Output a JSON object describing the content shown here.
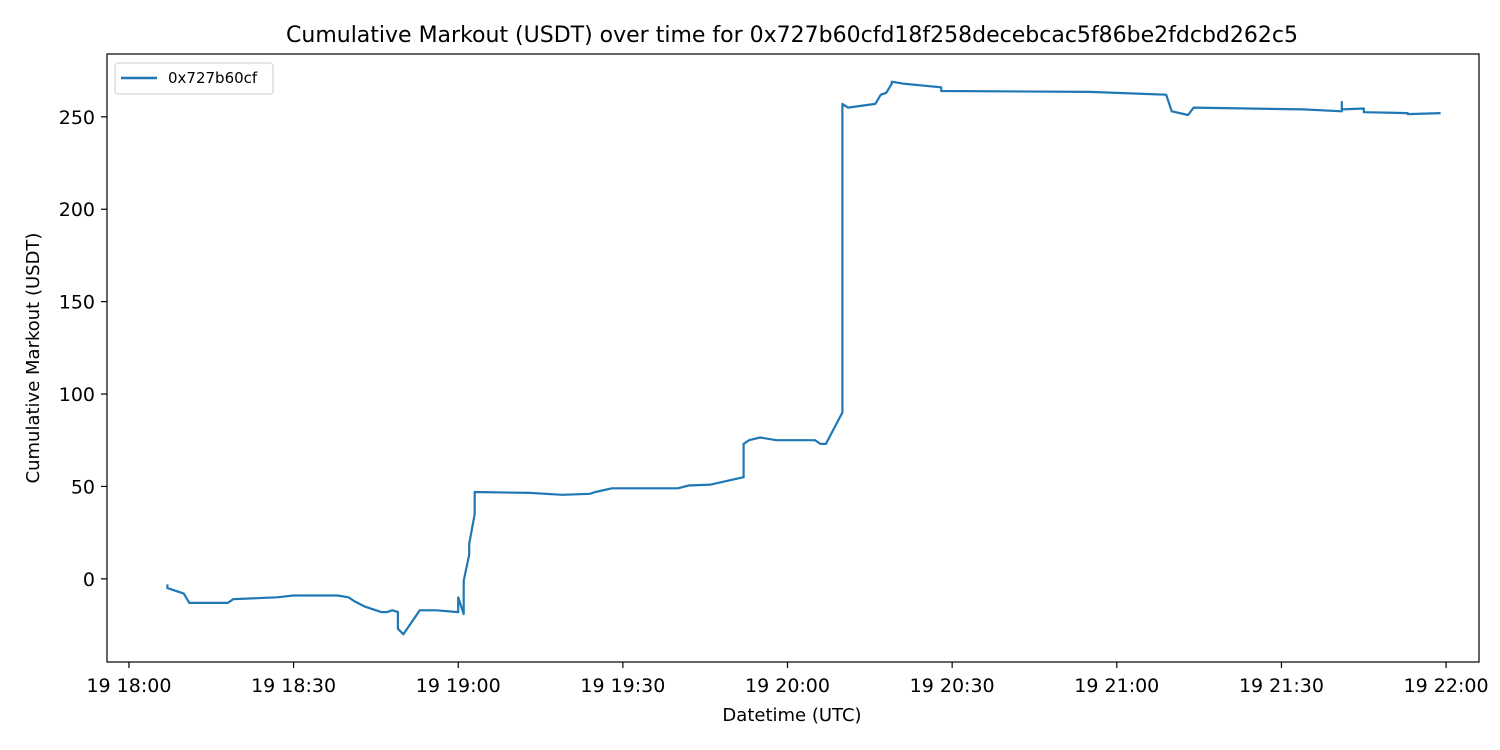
{
  "chart_data": {
    "type": "line",
    "title": "Cumulative Markout (USDT) over time for 0x727b60cfd18f258decebcac5f86be2fdcbd262c5",
    "xlabel": "Datetime (UTC)",
    "ylabel": "Cumulative Markout (USDT)",
    "x_ticks": [
      "19 18:00",
      "19 18:30",
      "19 19:00",
      "19 19:30",
      "19 20:00",
      "19 20:30",
      "19 21:00",
      "19 21:30",
      "19 22:00"
    ],
    "y_ticks": [
      0,
      50,
      100,
      150,
      200,
      250
    ],
    "xlim": [
      "19 17:56",
      "19 22:06"
    ],
    "ylim": [
      -45,
      284
    ],
    "grid": false,
    "legend": {
      "position": "top-left"
    },
    "series": [
      {
        "name": "0x727b60cf",
        "color": "#1f77b4",
        "x": [
          "19 18:07",
          "19 18:07",
          "19 18:10",
          "19 18:11",
          "19 18:18",
          "19 18:19",
          "19 18:27",
          "19 18:30",
          "19 18:38",
          "19 18:40",
          "19 18:41",
          "19 18:43",
          "19 18:44",
          "19 18:46",
          "19 18:47",
          "19 18:48",
          "19 18:49",
          "19 18:49",
          "19 18:50",
          "19 18:53",
          "19 18:56",
          "19 19:00",
          "19 19:00",
          "19 19:01",
          "19 19:01",
          "19 19:02",
          "19 19:02",
          "19 19:03",
          "19 19:03",
          "19 19:03",
          "19 19:13",
          "19 19:19",
          "19 19:24",
          "19 19:25",
          "19 19:28",
          "19 19:40",
          "19 19:42",
          "19 19:46",
          "19 19:52",
          "19 19:52",
          "19 19:53",
          "19 19:55",
          "19 19:58",
          "19 20:05",
          "19 20:06",
          "19 20:07",
          "19 20:10",
          "19 20:10",
          "19 20:10",
          "19 20:10",
          "19 20:11",
          "19 20:11",
          "19 20:16",
          "19 20:17",
          "19 20:18",
          "19 20:19",
          "19 20:19",
          "19 20:21",
          "19 20:28",
          "19 20:28",
          "19 20:55",
          "19 21:09",
          "19 21:10",
          "19 21:13",
          "19 21:14",
          "19 21:34",
          "19 21:41",
          "19 21:41",
          "19 21:41",
          "19 21:45",
          "19 21:45",
          "19 21:53",
          "19 21:53",
          "19 21:59"
        ],
        "y": [
          -3,
          -5,
          -8,
          -13,
          -13,
          -11,
          -10,
          -9,
          -9,
          -10,
          -12,
          -15,
          -16,
          -18,
          -18,
          -17,
          -18,
          -27,
          -30,
          -17,
          -17,
          -18,
          -10,
          -19,
          -1,
          13,
          19,
          35,
          47,
          47,
          46.5,
          45.5,
          46,
          47,
          49,
          49,
          50.5,
          51,
          55,
          73,
          75,
          76.5,
          75,
          75,
          73,
          73,
          90,
          190,
          256,
          257,
          255,
          255,
          257,
          262,
          263,
          268,
          269,
          268,
          266,
          264,
          263.5,
          262,
          253,
          251,
          255,
          254,
          253,
          258,
          254,
          254.5,
          252.5,
          252,
          251.5,
          252
        ]
      }
    ]
  }
}
